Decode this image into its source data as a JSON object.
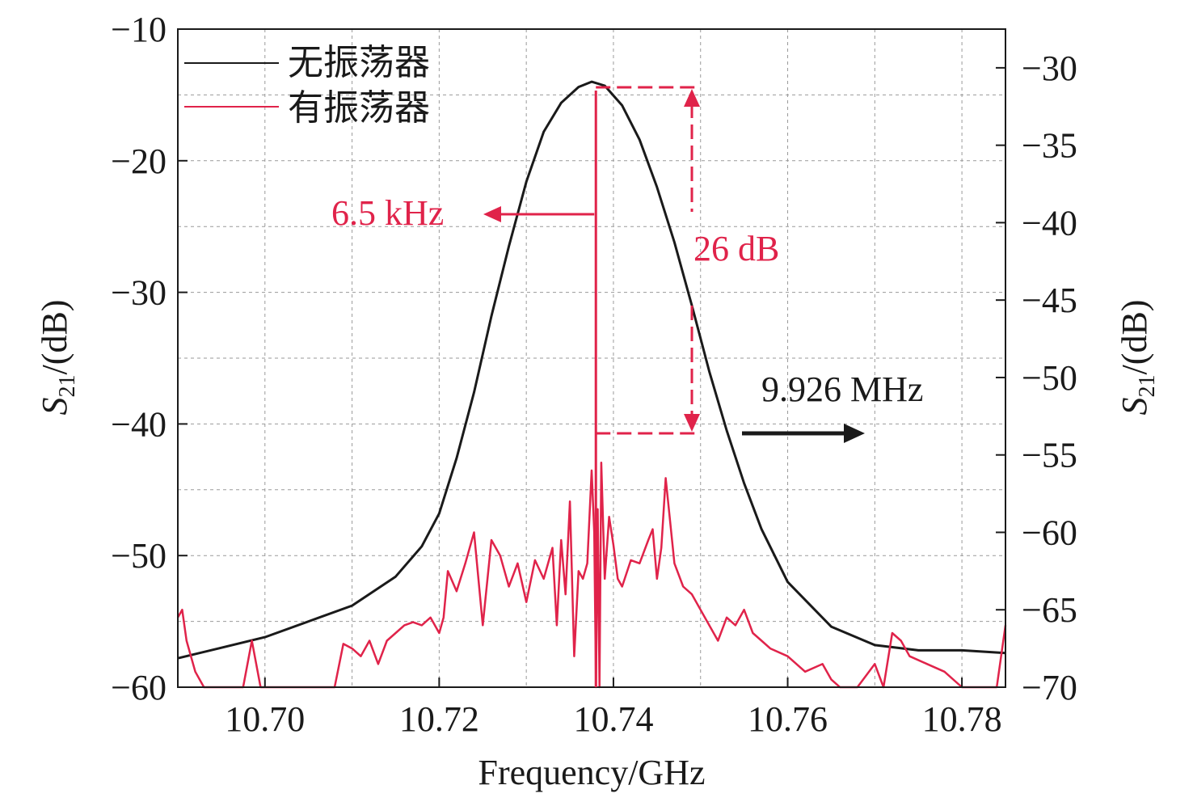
{
  "colors": {
    "black_series": "#1a1a1a",
    "red_series": "#e0234a",
    "annotation_red": "#e0234a",
    "grid": "#9a9a9a"
  },
  "chart_data": {
    "type": "line",
    "xlabel": "Frequency/GHz",
    "ylabel_left": "S21/(dB)",
    "ylabel_right": "S21/(dB)",
    "xlim": [
      10.69,
      10.785
    ],
    "ylim_left": [
      -60,
      -10
    ],
    "ylim_right": [
      -70,
      -27.5
    ],
    "x_ticks": [
      "10.70",
      "10.72",
      "10.74",
      "10.76",
      "10.78"
    ],
    "x_tick_values": [
      10.7,
      10.72,
      10.74,
      10.76,
      10.78
    ],
    "y_left_ticks": [
      "−10",
      "−20",
      "−30",
      "−40",
      "−50",
      "−60"
    ],
    "y_left_tick_values": [
      -10,
      -20,
      -30,
      -40,
      -50,
      -60
    ],
    "y_right_ticks": [
      "−30",
      "−35",
      "−40",
      "−45",
      "−50",
      "−55",
      "−60",
      "−65",
      "−70"
    ],
    "y_right_tick_values": [
      -30,
      -35,
      -40,
      -45,
      -50,
      -55,
      -60,
      -65,
      -70
    ],
    "grid": true,
    "legend_position": "top-left",
    "series": [
      {
        "name": "无振荡器",
        "axis": "left",
        "color": "#1a1a1a",
        "x": [
          10.69,
          10.695,
          10.7,
          10.705,
          10.71,
          10.715,
          10.718,
          10.72,
          10.722,
          10.724,
          10.726,
          10.728,
          10.73,
          10.732,
          10.734,
          10.736,
          10.7375,
          10.739,
          10.741,
          10.743,
          10.745,
          10.747,
          10.749,
          10.751,
          10.753,
          10.755,
          10.757,
          10.76,
          10.765,
          10.77,
          10.775,
          10.78,
          10.785
        ],
        "y": [
          -57.8,
          -57.0,
          -56.2,
          -55.0,
          -53.8,
          -51.6,
          -49.3,
          -46.8,
          -42.6,
          -37.6,
          -31.8,
          -26.5,
          -21.6,
          -17.8,
          -15.6,
          -14.4,
          -14.0,
          -14.3,
          -15.8,
          -18.4,
          -22.0,
          -26.2,
          -31.0,
          -36.0,
          -40.5,
          -44.5,
          -48.0,
          -52.0,
          -55.4,
          -56.8,
          -57.2,
          -57.2,
          -57.4
        ]
      },
      {
        "name": "有振荡器",
        "axis": "right",
        "color": "#e0234a",
        "x": [
          10.69,
          10.6905,
          10.691,
          10.692,
          10.693,
          10.694,
          10.695,
          10.6975,
          10.6985,
          10.6995,
          10.701,
          10.703,
          10.704,
          10.706,
          10.708,
          10.709,
          10.71,
          10.711,
          10.712,
          10.713,
          10.714,
          10.715,
          10.716,
          10.717,
          10.718,
          10.719,
          10.72,
          10.7205,
          10.721,
          10.722,
          10.723,
          10.724,
          10.725,
          10.726,
          10.727,
          10.728,
          10.729,
          10.73,
          10.731,
          10.732,
          10.733,
          10.7335,
          10.734,
          10.7345,
          10.735,
          10.7355,
          10.736,
          10.7365,
          10.737,
          10.7375,
          10.7378,
          10.738,
          10.7382,
          10.7384,
          10.7386,
          10.739,
          10.7395,
          10.74,
          10.7405,
          10.741,
          10.742,
          10.743,
          10.744,
          10.7445,
          10.745,
          10.7455,
          10.746,
          10.747,
          10.748,
          10.749,
          10.75,
          10.751,
          10.752,
          10.753,
          10.754,
          10.755,
          10.756,
          10.757,
          10.758,
          10.76,
          10.762,
          10.764,
          10.765,
          10.766,
          10.768,
          10.77,
          10.771,
          10.772,
          10.773,
          10.774,
          10.776,
          10.778,
          10.78,
          10.782,
          10.784,
          10.785
        ],
        "y": [
          -65.5,
          -65.0,
          -67.0,
          -69.0,
          -70.0,
          -70.0,
          -70.0,
          -70.0,
          -67.0,
          -70.0,
          -70.0,
          -70.0,
          -70.0,
          -70.0,
          -70.0,
          -67.2,
          -67.5,
          -68.0,
          -67.0,
          -68.5,
          -67.0,
          -66.5,
          -66.0,
          -65.8,
          -66.0,
          -65.5,
          -66.5,
          -65.5,
          -62.5,
          -63.8,
          -62.0,
          -60.0,
          -66.0,
          -60.5,
          -61.5,
          -63.5,
          -62.0,
          -64.5,
          -61.8,
          -63.0,
          -61.0,
          -66.0,
          -60.5,
          -64.0,
          -58.0,
          -68.0,
          -62.5,
          -63.0,
          -62.0,
          -56.0,
          -60.0,
          -70.0,
          -58.5,
          -70.0,
          -55.5,
          -63.0,
          -59.0,
          -60.8,
          -63.0,
          -63.5,
          -61.8,
          -62.0,
          -60.5,
          -59.8,
          -63.0,
          -61.0,
          -56.5,
          -62.0,
          -63.5,
          -64.0,
          -65.0,
          -66.0,
          -67.0,
          -65.5,
          -66.0,
          -65.0,
          -66.5,
          -67.0,
          -67.5,
          -68.0,
          -69.0,
          -68.5,
          -69.5,
          -70.0,
          -70.0,
          -68.5,
          -70.0,
          -66.5,
          -67.0,
          -68.0,
          -68.5,
          -69.0,
          -70.0,
          -70.0,
          -70.0,
          -66.0
        ]
      }
    ],
    "annotations": [
      {
        "text": "6.5 kHz",
        "color": "#e0234a"
      },
      {
        "text": "26 dB",
        "color": "#e0234a"
      },
      {
        "text": "9.926 MHz",
        "color": "#1a1a1a"
      }
    ]
  }
}
